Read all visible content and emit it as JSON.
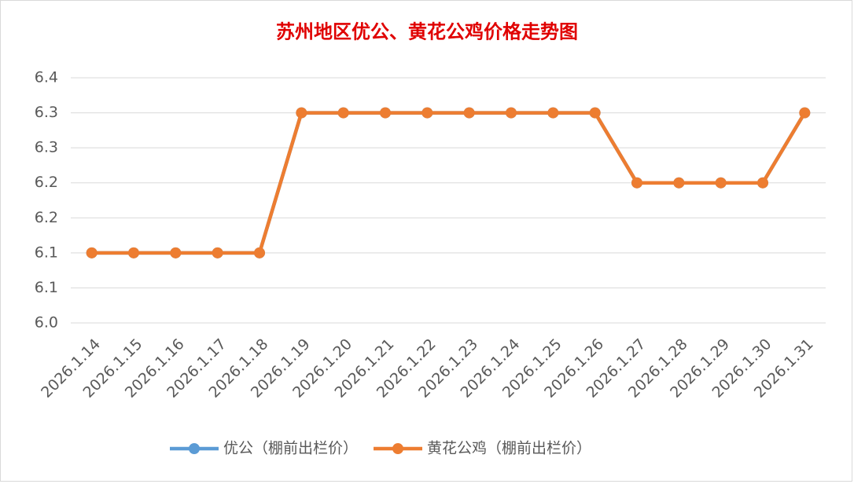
{
  "chart_data": {
    "type": "line",
    "title": "苏州地区优公、黄花公鸡价格走势图",
    "categories": [
      "2026.1.14",
      "2026.1.15",
      "2026.1.16",
      "2026.1.17",
      "2026.1.18",
      "2026.1.19",
      "2026.1.20",
      "2026.1.21",
      "2026.1.22",
      "2026.1.23",
      "2026.1.24",
      "2026.1.25",
      "2026.1.26",
      "2026.1.27",
      "2026.1.28",
      "2026.1.29",
      "2026.1.30",
      "2026.1.31"
    ],
    "series": [
      {
        "name": "优公（棚前出栏价）",
        "color": "#5b9bd5",
        "values": [
          6.1,
          6.1,
          6.1,
          6.1,
          6.1,
          6.3,
          6.3,
          6.3,
          6.3,
          6.3,
          6.3,
          6.3,
          6.3,
          6.2,
          6.2,
          6.2,
          6.2,
          6.3
        ]
      },
      {
        "name": "黄花公鸡（棚前出栏价）",
        "color": "#ed7d31",
        "values": [
          6.1,
          6.1,
          6.1,
          6.1,
          6.1,
          6.3,
          6.3,
          6.3,
          6.3,
          6.3,
          6.3,
          6.3,
          6.3,
          6.2,
          6.2,
          6.2,
          6.2,
          6.3
        ]
      }
    ],
    "ylim": [
      6.0,
      6.35
    ],
    "yticks": [
      {
        "value": 6.0,
        "label": "6.0"
      },
      {
        "value": 6.05,
        "label": "6.1"
      },
      {
        "value": 6.1,
        "label": "6.1"
      },
      {
        "value": 6.15,
        "label": "6.2"
      },
      {
        "value": 6.2,
        "label": "6.2"
      },
      {
        "value": 6.25,
        "label": "6.3"
      },
      {
        "value": 6.3,
        "label": "6.3"
      },
      {
        "value": 6.35,
        "label": "6.4"
      }
    ],
    "grid": true,
    "legend": "bottom"
  }
}
